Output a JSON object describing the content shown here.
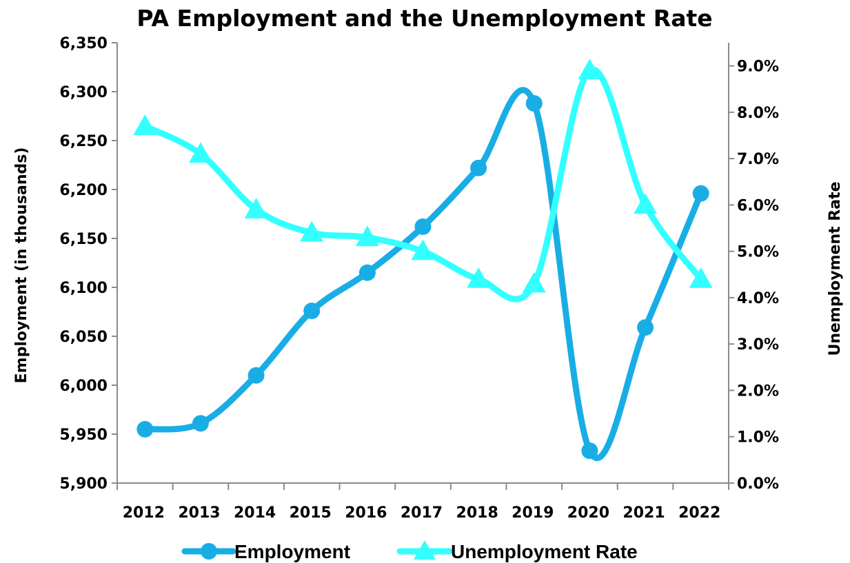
{
  "chart_data": {
    "type": "line",
    "title": "PA Employment and the Unemployment Rate",
    "categories": [
      "2012",
      "2013",
      "2014",
      "2015",
      "2016",
      "2017",
      "2018",
      "2019",
      "2020",
      "2021",
      "2022"
    ],
    "ylabel_left": "Employment (in thousands)",
    "ylabel_right": "Unemployment Rate",
    "ylim_left": [
      5900,
      6350
    ],
    "ylim_right": [
      0,
      9.5
    ],
    "yticks_left": [
      "5,900",
      "5,950",
      "6,000",
      "6,050",
      "6,100",
      "6,150",
      "6,200",
      "6,250",
      "6,300",
      "6,350"
    ],
    "yticks_right": [
      "0.0%",
      "1.0%",
      "2.0%",
      "3.0%",
      "4.0%",
      "5.0%",
      "6.0%",
      "7.0%",
      "8.0%",
      "9.0%"
    ],
    "series": [
      {
        "name": "Employment",
        "axis": "left",
        "color": "#19ADE6",
        "marker": "circle",
        "values": [
          5955,
          5961,
          6010,
          6076,
          6115,
          6162,
          6222,
          6288,
          5933,
          6059,
          6196
        ]
      },
      {
        "name": "Unemployment Rate",
        "axis": "right",
        "color": "#33FFFF",
        "marker": "triangle",
        "values": [
          7.7,
          7.1,
          5.9,
          5.4,
          5.3,
          5.0,
          4.4,
          4.3,
          8.9,
          6.0,
          4.4
        ]
      }
    ],
    "legend_position": "bottom",
    "grid": false
  }
}
